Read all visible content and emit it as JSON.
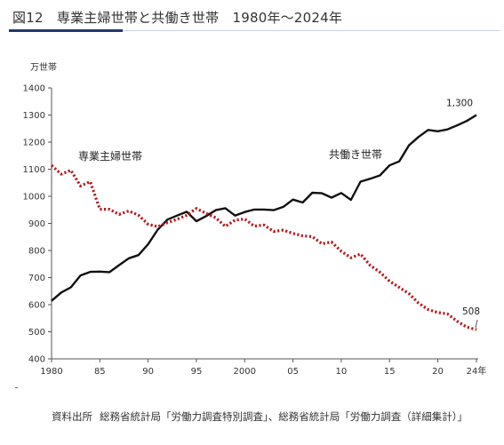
{
  "title": "図12　専業主婦世帯と共働き世帯　1980年～2024年",
  "source": {
    "label": "資料出所",
    "text": "総務省統計局「労働力調査特別調査」、総務省統計局「労働力調査（詳細集計）」"
  },
  "chart_data": {
    "type": "line",
    "unit_label": "万世帯",
    "x": [
      1980,
      1981,
      1982,
      1983,
      1984,
      1985,
      1986,
      1987,
      1988,
      1989,
      1990,
      1991,
      1992,
      1993,
      1994,
      1995,
      1996,
      1997,
      1998,
      1999,
      2000,
      2001,
      2002,
      2003,
      2004,
      2005,
      2006,
      2007,
      2008,
      2009,
      2010,
      2011,
      2012,
      2013,
      2014,
      2015,
      2016,
      2017,
      2018,
      2019,
      2020,
      2021,
      2022,
      2023,
      2024
    ],
    "x_ticks": [
      {
        "value": 1980,
        "label": "1980"
      },
      {
        "value": 1985,
        "label": "85"
      },
      {
        "value": 1990,
        "label": "90"
      },
      {
        "value": 1995,
        "label": "95"
      },
      {
        "value": 2000,
        "label": "2000"
      },
      {
        "value": 2005,
        "label": "05"
      },
      {
        "value": 2010,
        "label": "10"
      },
      {
        "value": 2015,
        "label": "15"
      },
      {
        "value": 2020,
        "label": "20"
      },
      {
        "value": 2024,
        "label": "24年"
      }
    ],
    "y_ticks": [
      400,
      500,
      600,
      700,
      800,
      900,
      1000,
      1100,
      1200,
      1300,
      1400
    ],
    "ylim": [
      400,
      1400
    ],
    "xlim": [
      1980,
      2024
    ],
    "series": [
      {
        "name": "共働き世帯",
        "color": "#111111",
        "style": "solid",
        "values": [
          614,
          645,
          664,
          708,
          721,
          722,
          720,
          746,
          771,
          783,
          823,
          877,
          914,
          929,
          943,
          908,
          927,
          949,
          956,
          929,
          942,
          951,
          951,
          949,
          961,
          988,
          977,
          1013,
          1011,
          995,
          1012,
          987,
          1054,
          1065,
          1077,
          1114,
          1129,
          1188,
          1219,
          1245,
          1240,
          1247,
          1262,
          1278,
          1300
        ],
        "end_label": "1,300"
      },
      {
        "name": "専業主婦世帯",
        "color": "#b51b1b",
        "style": "dotted",
        "values": [
          1114,
          1082,
          1096,
          1038,
          1054,
          952,
          952,
          933,
          946,
          930,
          897,
          888,
          903,
          915,
          930,
          955,
          937,
          921,
          889,
          912,
          916,
          890,
          894,
          870,
          875,
          863,
          854,
          851,
          825,
          831,
          797,
          773,
          787,
          745,
          720,
          687,
          664,
          641,
          606,
          582,
          571,
          566,
          539,
          517,
          508
        ],
        "end_label": "508"
      }
    ],
    "legend": "inline-labels"
  }
}
